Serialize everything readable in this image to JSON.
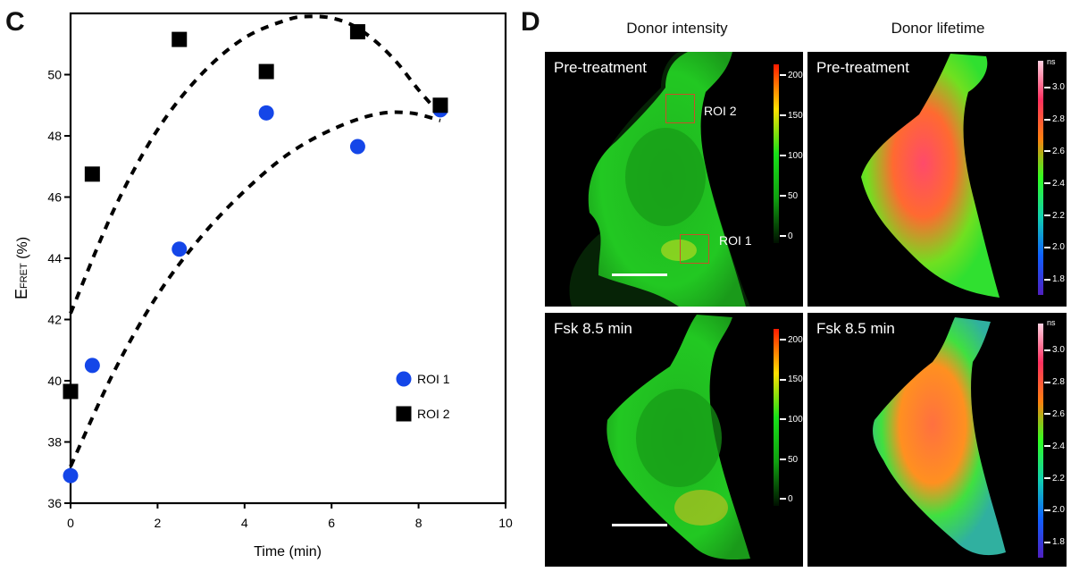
{
  "figure": {
    "panel_c_letter": "C",
    "panel_d_letter": "D"
  },
  "chart_data": {
    "type": "scatter",
    "title": "",
    "xlabel": "Time (min)",
    "ylabel_main": "E",
    "ylabel_sub": "FRET",
    "ylabel_suffix": " (%)",
    "xlim": [
      0,
      10
    ],
    "ylim": [
      36,
      52
    ],
    "xticks": [
      0,
      2,
      4,
      6,
      8,
      10
    ],
    "yticks": [
      36,
      38,
      40,
      42,
      44,
      46,
      48,
      50
    ],
    "grid": false,
    "legend_position": "lower-right",
    "series": [
      {
        "name": "ROI 1",
        "marker": "circle",
        "color": "#1446e8",
        "x": [
          0,
          0.5,
          2.5,
          4.5,
          6.6,
          8.5
        ],
        "y": [
          36.9,
          40.5,
          44.3,
          48.75,
          47.65,
          48.85
        ],
        "fit_curve": {
          "style": "dashed",
          "x": [
            0,
            1,
            2,
            3,
            4,
            5,
            6,
            7,
            7.8,
            8.5
          ],
          "y": [
            37.2,
            40.3,
            42.8,
            44.7,
            46.2,
            47.4,
            48.2,
            48.7,
            48.75,
            48.5
          ]
        }
      },
      {
        "name": "ROI 2",
        "marker": "square",
        "color": "#000000",
        "x": [
          0,
          0.5,
          2.5,
          4.5,
          6.6,
          8.5
        ],
        "y": [
          39.65,
          46.75,
          51.15,
          50.1,
          51.4,
          49.0
        ],
        "fit_curve": {
          "style": "dashed",
          "x": [
            0,
            1,
            2,
            3,
            4,
            5,
            5.5,
            6,
            6.5,
            7,
            7.5,
            8,
            8.5
          ],
          "y": [
            42.2,
            45.6,
            48.2,
            50.0,
            51.2,
            51.8,
            51.9,
            51.85,
            51.6,
            51.1,
            50.4,
            49.5,
            48.7
          ]
        }
      }
    ]
  },
  "panel_d": {
    "column_titles": [
      "Donor intensity",
      "Donor lifetime"
    ],
    "images": [
      {
        "label": "Pre-treatment",
        "type": "intensity",
        "roi_labels": [
          "ROI 2",
          "ROI 1"
        ]
      },
      {
        "label": "Pre-treatment",
        "type": "lifetime"
      },
      {
        "label": "Fsk 8.5 min",
        "type": "intensity"
      },
      {
        "label": "Fsk 8.5 min",
        "type": "lifetime"
      }
    ],
    "intensity_colorbar": {
      "ticks": [
        "200",
        "150",
        "100",
        "50",
        "0"
      ],
      "colors": [
        "#ff1a00",
        "#ffe000",
        "#18e018",
        "#10a010",
        "#001000"
      ]
    },
    "lifetime_colorbar": {
      "unit": "ns",
      "ticks": [
        "3.0",
        "2.8",
        "2.6",
        "2.4",
        "2.2",
        "2.0",
        "1.8"
      ],
      "colors": [
        "#ffd0e0",
        "#ff3060",
        "#ff8010",
        "#30ff20",
        "#10d0b0",
        "#1060ff",
        "#5020c0"
      ]
    }
  }
}
